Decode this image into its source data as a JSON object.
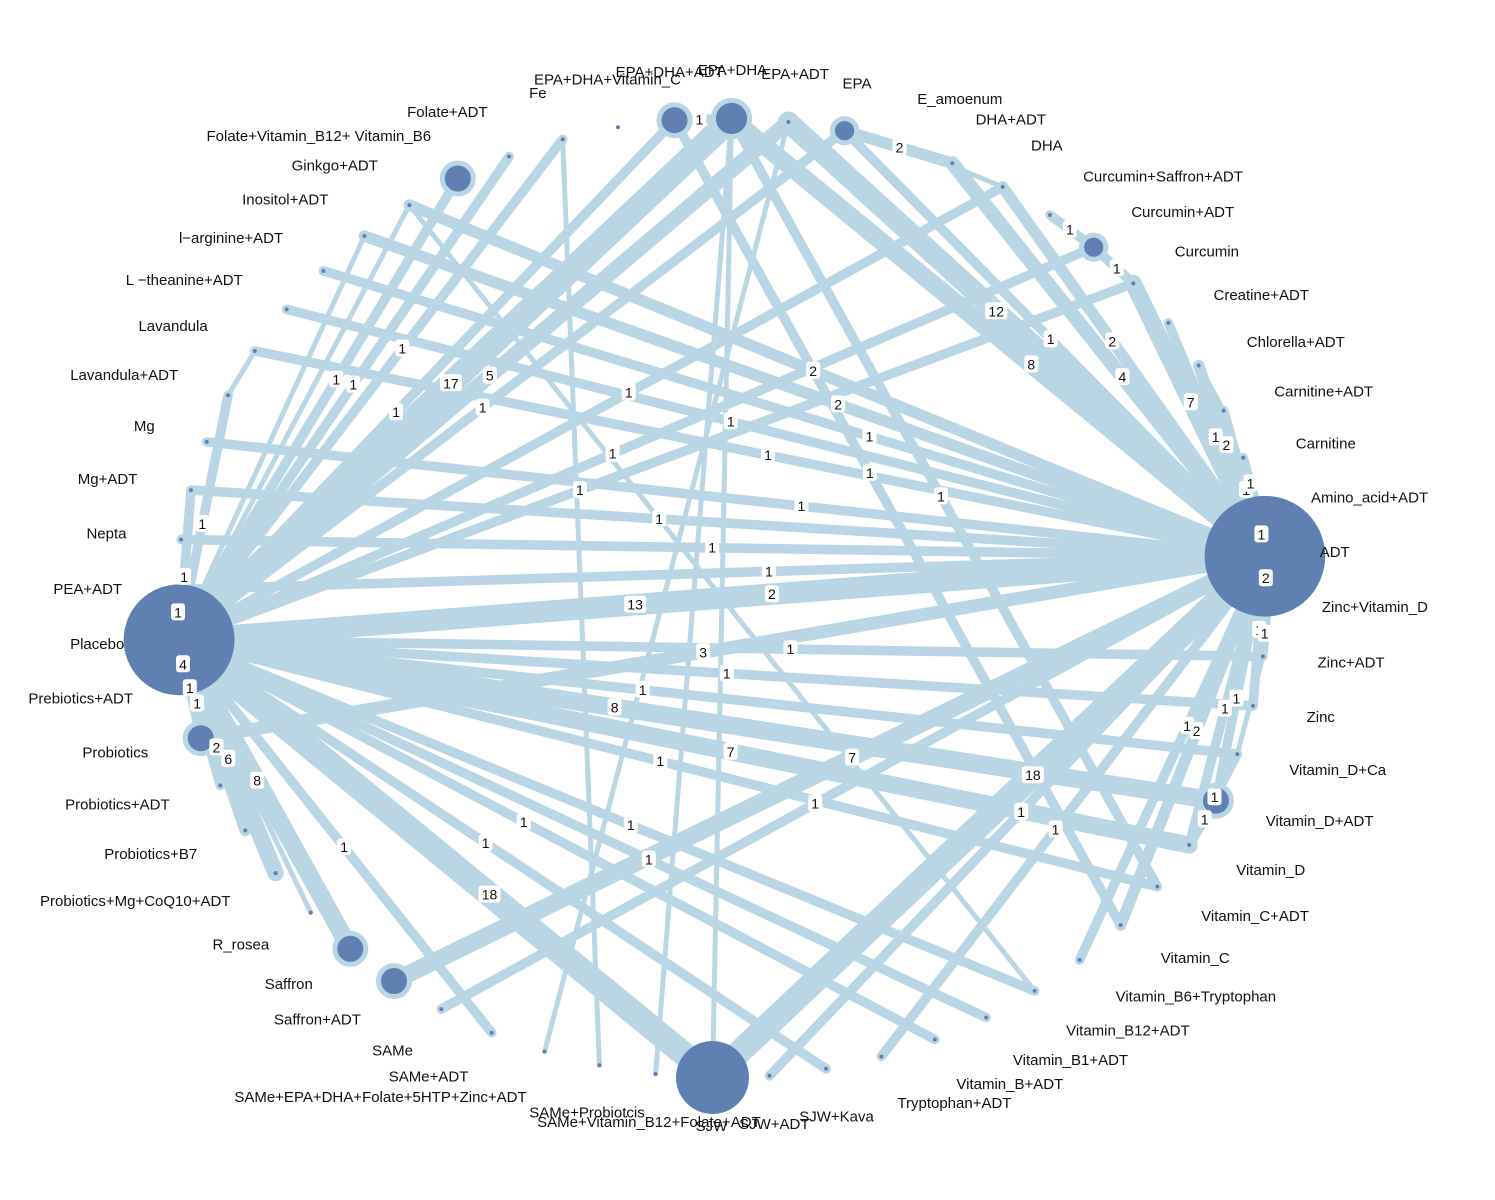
{
  "style": {
    "edge_color": "#bad6e4",
    "node_color": "#5f80b1",
    "label_color": "#111111"
  },
  "network": {
    "nodes": [
      {
        "id": "ADT",
        "label": "ADT",
        "studies": 24
      },
      {
        "id": "Zinc_Vitamin_D",
        "label": "Zinc+Vitamin_D",
        "studies": 0
      },
      {
        "id": "Zinc_ADT",
        "label": "Zinc+ADT",
        "studies": 0
      },
      {
        "id": "Zinc",
        "label": "Zinc",
        "studies": 0
      },
      {
        "id": "Vitamin_D_Ca",
        "label": "Vitamin_D+Ca",
        "studies": 0
      },
      {
        "id": "Vitamin_D_ADT",
        "label": "Vitamin_D+ADT",
        "studies": 1
      },
      {
        "id": "Vitamin_D",
        "label": "Vitamin_D",
        "studies": 0
      },
      {
        "id": "Vitamin_C_ADT",
        "label": "Vitamin_C+ADT",
        "studies": 0
      },
      {
        "id": "Vitamin_C",
        "label": "Vitamin_C",
        "studies": 0
      },
      {
        "id": "Vitamin_B6_Tryptophan",
        "label": "Vitamin_B6+Tryptophan",
        "studies": 0
      },
      {
        "id": "Vitamin_B12_ADT",
        "label": "Vitamin_B12+ADT",
        "studies": 0
      },
      {
        "id": "Vitamin_B1_ADT",
        "label": "Vitamin_B1+ADT",
        "studies": 0
      },
      {
        "id": "Vitamin_B_ADT",
        "label": "Vitamin_B+ADT",
        "studies": 0
      },
      {
        "id": "Tryptophan_ADT",
        "label": "Tryptophan+ADT",
        "studies": 0
      },
      {
        "id": "SJW_Kava",
        "label": "SJW+Kava",
        "studies": 0
      },
      {
        "id": "SJW_ADT",
        "label": "SJW+ADT",
        "studies": 0
      },
      {
        "id": "SJW",
        "label": "SJW",
        "studies": 8
      },
      {
        "id": "SAMe_VitB12_Folate_ADT",
        "label": "SAMe+Vitamin_B12+Folate+ADT",
        "studies": 0
      },
      {
        "id": "SAMe_Probiotcis",
        "label": "SAMe+Probiotcis",
        "studies": 0
      },
      {
        "id": "SAMe_EPA_DHA",
        "label": "SAMe+EPA+DHA+Folate+5HTP+Zinc+ADT",
        "studies": 0
      },
      {
        "id": "SAMe_ADT",
        "label": "SAMe+ADT",
        "studies": 0
      },
      {
        "id": "SAMe",
        "label": "SAMe",
        "studies": 0
      },
      {
        "id": "Saffron_ADT",
        "label": "Saffron+ADT",
        "studies": 1
      },
      {
        "id": "Saffron",
        "label": "Saffron",
        "studies": 1
      },
      {
        "id": "R_rosea",
        "label": "R_rosea",
        "studies": 0
      },
      {
        "id": "Probiotics_Mg_CoQ10_ADT",
        "label": "Probiotics+Mg+CoQ10+ADT",
        "studies": 0
      },
      {
        "id": "Probiotics_B7",
        "label": "Probiotics+B7",
        "studies": 0
      },
      {
        "id": "Probiotics_ADT",
        "label": "Probiotics+ADT",
        "studies": 0
      },
      {
        "id": "Probiotics",
        "label": "Probiotics",
        "studies": 1
      },
      {
        "id": "Prebiotics_ADT",
        "label": "Prebiotics+ADT",
        "studies": 0
      },
      {
        "id": "Placebo",
        "label": "Placebo",
        "studies": 20
      },
      {
        "id": "PEA_ADT",
        "label": "PEA+ADT",
        "studies": 0
      },
      {
        "id": "Nepta",
        "label": "Nepta",
        "studies": 0
      },
      {
        "id": "Mg_ADT",
        "label": "Mg+ADT",
        "studies": 0
      },
      {
        "id": "Mg",
        "label": "Mg",
        "studies": 0
      },
      {
        "id": "Lavandula_ADT",
        "label": "Lavandula+ADT",
        "studies": 0
      },
      {
        "id": "Lavandula",
        "label": "Lavandula",
        "studies": 0
      },
      {
        "id": "L_theanine_ADT",
        "label": "L −theanine+ADT",
        "studies": 0
      },
      {
        "id": "l_arginine_ADT",
        "label": "l−arginine+ADT",
        "studies": 0
      },
      {
        "id": "Inositol_ADT",
        "label": "Inositol+ADT",
        "studies": 0
      },
      {
        "id": "Ginkgo_ADT",
        "label": "Ginkgo+ADT",
        "studies": 0
      },
      {
        "id": "Folate_VitB12_VitB6",
        "label": "Folate+Vitamin_B12+ Vitamin_B6",
        "studies": 1
      },
      {
        "id": "Folate_ADT",
        "label": "Folate+ADT",
        "studies": 0
      },
      {
        "id": "Fe",
        "label": "Fe",
        "studies": 0
      },
      {
        "id": "EPA_DHA_Vitamin_C",
        "label": "EPA+DHA+Vitamin_C",
        "studies": 0
      },
      {
        "id": "EPA_DHA_ADT",
        "label": "EPA+DHA+ADT",
        "studies": 1
      },
      {
        "id": "EPA_DHA",
        "label": "EPA+DHA",
        "studies": 1.5
      },
      {
        "id": "EPA_ADT",
        "label": "EPA+ADT",
        "studies": 0
      },
      {
        "id": "EPA",
        "label": "EPA",
        "studies": 0.5
      },
      {
        "id": "E_amoenum",
        "label": "E_amoenum",
        "studies": 0
      },
      {
        "id": "DHA_ADT",
        "label": "DHA+ADT",
        "studies": 0
      },
      {
        "id": "DHA",
        "label": "DHA",
        "studies": 0
      },
      {
        "id": "Curcumin_Saffron_ADT",
        "label": "Curcumin+Saffron+ADT",
        "studies": 0
      },
      {
        "id": "Curcumin_ADT",
        "label": "Curcumin+ADT",
        "studies": 0.5
      },
      {
        "id": "Curcumin",
        "label": "Curcumin",
        "studies": 0
      },
      {
        "id": "Creatine_ADT",
        "label": "Creatine+ADT",
        "studies": 0
      },
      {
        "id": "Chlorella_ADT",
        "label": "Chlorella+ADT",
        "studies": 0
      },
      {
        "id": "Carnitine_ADT",
        "label": "Carnitine+ADT",
        "studies": 0
      },
      {
        "id": "Carnitine",
        "label": "Carnitine",
        "studies": 0
      },
      {
        "id": "Amino_acid_ADT",
        "label": "Amino_acid+ADT",
        "studies": 0
      }
    ],
    "edges": [
      {
        "from": "Placebo",
        "to": "ADT",
        "count": "13"
      },
      {
        "from": "Placebo",
        "to": "ADT",
        "count": "2"
      },
      {
        "from": "Placebo",
        "to": "EPA_DHA",
        "count": "17"
      },
      {
        "from": "Placebo",
        "to": "EPA_DHA_ADT",
        "count": "1"
      },
      {
        "from": "Placebo",
        "to": "Folate_VitB12_VitB6",
        "count": "1"
      },
      {
        "from": "Placebo",
        "to": "EPA_ADT",
        "count": "5"
      },
      {
        "from": "Placebo",
        "to": "EPA",
        "count": "1"
      },
      {
        "from": "Placebo",
        "to": "Fe",
        "count": "1"
      },
      {
        "from": "Placebo",
        "to": "Folate_ADT",
        "count": "1"
      },
      {
        "from": "Placebo",
        "to": "Lavandula_ADT",
        "count": "1"
      },
      {
        "from": "Placebo",
        "to": "Mg_ADT",
        "count": "1"
      },
      {
        "from": "Placebo",
        "to": "PEA_ADT",
        "count": "1"
      },
      {
        "from": "Placebo",
        "to": "Prebiotics_ADT",
        "count": "4"
      },
      {
        "from": "Placebo",
        "to": "Probiotics_ADT",
        "count": "1"
      },
      {
        "from": "Placebo",
        "to": "Probiotics_B7",
        "count": "2"
      },
      {
        "from": "Placebo",
        "to": "Probiotics_Mg_CoQ10_ADT",
        "count": "6"
      },
      {
        "from": "Placebo",
        "to": "Saffron",
        "count": "8"
      },
      {
        "from": "Placebo",
        "to": "SJW",
        "count": "18"
      },
      {
        "from": "Placebo",
        "to": "SAMe_ADT",
        "count": "1"
      },
      {
        "from": "Placebo",
        "to": "SJW_Kava",
        "count": "1"
      },
      {
        "from": "Placebo",
        "to": "Vitamin_D_ADT",
        "count": "8"
      },
      {
        "from": "Placebo",
        "to": "Vitamin_D",
        "count": "7"
      },
      {
        "from": "Placebo",
        "to": "Vitamin_C_ADT",
        "count": "1"
      },
      {
        "from": "Placebo",
        "to": "Vitamin_D_Ca",
        "count": "1"
      },
      {
        "from": "Placebo",
        "to": "Zinc_ADT",
        "count": "1"
      },
      {
        "from": "Placebo",
        "to": "Zinc",
        "count": "1"
      },
      {
        "from": "Placebo",
        "to": "Vitamin_B_ADT",
        "count": "1"
      },
      {
        "from": "Placebo",
        "to": "Vitamin_B1_ADT",
        "count": "1"
      },
      {
        "from": "Placebo",
        "to": "Vitamin_B12_ADT",
        "count": "1"
      },
      {
        "from": "Placebo",
        "to": "Curcumin_ADT",
        "count": "1"
      },
      {
        "from": "Placebo",
        "to": "Curcumin",
        "count": "1"
      },
      {
        "from": "Placebo",
        "to": "DHA",
        "count": "1"
      },
      {
        "from": "Placebo",
        "to": "Probiotics",
        "count": "1"
      },
      {
        "from": "ADT",
        "to": "EPA_DHA",
        "count": "8"
      },
      {
        "from": "ADT",
        "to": "EPA_ADT",
        "count": "12"
      },
      {
        "from": "ADT",
        "to": "EPA",
        "count": "1"
      },
      {
        "from": "ADT",
        "to": "DHA_ADT",
        "count": "4"
      },
      {
        "from": "ADT",
        "to": "DHA",
        "count": "2"
      },
      {
        "from": "ADT",
        "to": "Probiotics",
        "count": "3"
      },
      {
        "from": "ADT",
        "to": "Saffron_ADT",
        "count": "7"
      },
      {
        "from": "ADT",
        "to": "SJW",
        "count": "18"
      },
      {
        "from": "ADT",
        "to": "SAMe",
        "count": "1"
      },
      {
        "from": "ADT",
        "to": "SJW_ADT",
        "count": "1"
      },
      {
        "from": "ADT",
        "to": "Zinc_Vitamin_D",
        "count": "2"
      },
      {
        "from": "ADT",
        "to": "Curcumin",
        "count": "7"
      },
      {
        "from": "ADT",
        "to": "Creatine_ADT",
        "count": "1"
      },
      {
        "from": "ADT",
        "to": "Carnitine_ADT",
        "count": "1"
      },
      {
        "from": "ADT",
        "to": "Chlorella_ADT",
        "count": "2"
      },
      {
        "from": "ADT",
        "to": "Ginkgo_ADT",
        "count": "2"
      },
      {
        "from": "ADT",
        "to": "Inositol_ADT",
        "count": "2"
      },
      {
        "from": "ADT",
        "to": "l_arginine_ADT",
        "count": "1"
      },
      {
        "from": "ADT",
        "to": "L_theanine_ADT",
        "count": "1"
      },
      {
        "from": "ADT",
        "to": "Lavandula",
        "count": "1"
      },
      {
        "from": "ADT",
        "to": "Mg",
        "count": "1"
      },
      {
        "from": "ADT",
        "to": "Mg_ADT",
        "count": "1"
      },
      {
        "from": "ADT",
        "to": "Nepta",
        "count": "1"
      },
      {
        "from": "ADT",
        "to": "PEA_ADT",
        "count": "1"
      },
      {
        "from": "ADT",
        "to": "Vitamin_D_ADT",
        "count": "1"
      },
      {
        "from": "ADT",
        "to": "Vitamin_D",
        "count": "1"
      },
      {
        "from": "ADT",
        "to": "Vitamin_C",
        "count": "2"
      },
      {
        "from": "ADT",
        "to": "Vitamin_B6_Tryptophan",
        "count": "1"
      },
      {
        "from": "ADT",
        "to": "Tryptophan_ADT",
        "count": "1"
      },
      {
        "from": "ADT",
        "to": "Zinc",
        "count": "1"
      },
      {
        "from": "ADT",
        "to": "Amino_acid_ADT",
        "count": "1"
      },
      {
        "from": "EPA_DHA",
        "to": "EPA_DHA_ADT",
        "count": "1"
      },
      {
        "from": "EPA",
        "to": "DHA_ADT",
        "count": "2"
      },
      {
        "from": "Curcumin_Saffron_ADT",
        "to": "Curcumin_ADT",
        "count": "1"
      },
      {
        "from": "Curcumin_ADT",
        "to": "Curcumin",
        "count": "1"
      },
      {
        "from": "Carnitine",
        "to": "Amino_acid_ADT",
        "count": "1"
      },
      {
        "from": "Vitamin_D_Ca",
        "to": "Vitamin_D",
        "count": "1"
      },
      {
        "from": "Vitamin_D_ADT",
        "to": "Vitamin_D",
        "count": "1"
      },
      {
        "from": "Zinc_Vitamin_D",
        "to": "Zinc_ADT",
        "count": "1"
      },
      {
        "from": "EPA_DHA",
        "to": "Vitamin_C_ADT",
        "count": "1"
      },
      {
        "from": "EPA_DHA_ADT",
        "to": "Vitamin_C",
        "count": "1"
      },
      {
        "from": "Placebo",
        "to": "Inositol_ADT",
        "count": ""
      },
      {
        "from": "Placebo",
        "to": "Ginkgo_ADT",
        "count": ""
      },
      {
        "from": "Placebo",
        "to": "R_rosea",
        "count": ""
      },
      {
        "from": "SJW",
        "to": "EPA_DHA",
        "count": ""
      },
      {
        "from": "Fe",
        "to": "SAMe_Probiotcis",
        "count": ""
      },
      {
        "from": "Ginkgo_ADT",
        "to": "Vitamin_B12_ADT",
        "count": ""
      },
      {
        "from": "Lavandula_ADT",
        "to": "Lavandula",
        "count": ""
      },
      {
        "from": "E_amoenum",
        "to": "DHA",
        "count": ""
      },
      {
        "from": "SAMe_EPA_DHA",
        "to": "EPA_ADT",
        "count": ""
      },
      {
        "from": "SAMe_VitB12_Folate_ADT",
        "to": "EPA_DHA",
        "count": ""
      },
      {
        "from": "Vitamin_D_Ca",
        "to": "Zinc_ADT",
        "count": ""
      },
      {
        "from": "Chlorella_ADT",
        "to": "Carnitine_ADT",
        "count": ""
      }
    ]
  }
}
